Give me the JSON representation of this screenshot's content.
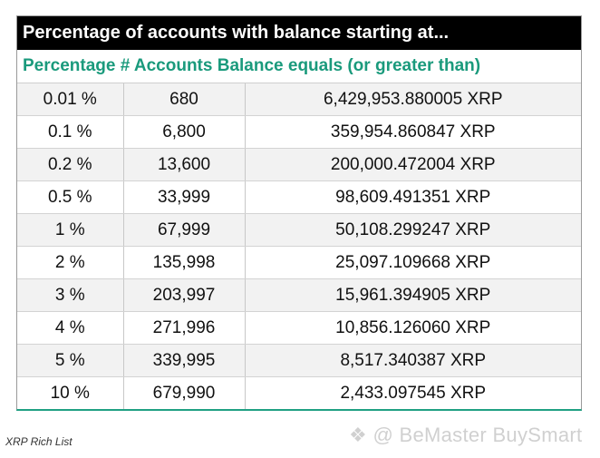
{
  "table": {
    "title": "Percentage of accounts with balance starting at...",
    "headers": [
      "Percentage",
      "# Accounts",
      "Balance equals (or greater than)"
    ],
    "rows": [
      [
        "0.01 %",
        "680",
        "6,429,953.880005 XRP"
      ],
      [
        "0.1 %",
        "6,800",
        "359,954.860847 XRP"
      ],
      [
        "0.2 %",
        "13,600",
        "200,000.472004 XRP"
      ],
      [
        "0.5 %",
        "33,999",
        "98,609.491351 XRP"
      ],
      [
        "1 %",
        "67,999",
        "50,108.299247 XRP"
      ],
      [
        "2 %",
        "135,998",
        "25,097.109668 XRP"
      ],
      [
        "3 %",
        "203,997",
        "15,961.394905 XRP"
      ],
      [
        "4 %",
        "271,996",
        "10,856.126060 XRP"
      ],
      [
        "5 %",
        "339,995",
        "8,517.340387 XRP"
      ],
      [
        "10 %",
        "679,990",
        "2,433.097545 XRP"
      ]
    ]
  },
  "caption": "XRP Rich List",
  "watermark": "@ BeMaster BuySmart",
  "colors": {
    "title_bg": "#000000",
    "header_text": "#1a9a7c",
    "accent_border": "#1fa083",
    "row_alt": "#f2f2f2"
  }
}
